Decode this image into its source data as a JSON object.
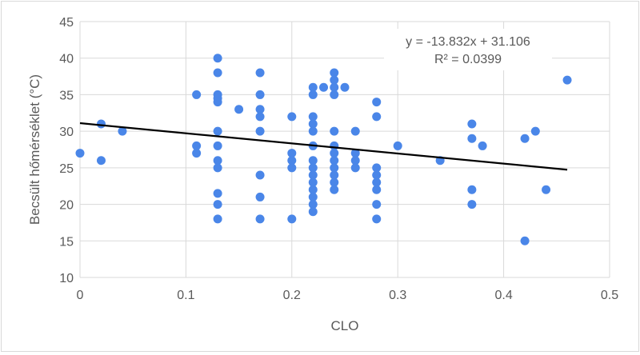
{
  "chart_data": {
    "type": "scatter",
    "title": "",
    "xlabel": "CLO",
    "ylabel": "Becsült hőmérséklet (°C)",
    "xlim": [
      0,
      0.5
    ],
    "ylim": [
      10,
      45
    ],
    "x_ticks": [
      "0",
      "0.1",
      "0.2",
      "0.3",
      "0.4",
      "0.5"
    ],
    "y_ticks": [
      "10",
      "15",
      "20",
      "25",
      "30",
      "35",
      "40",
      "45"
    ],
    "grid": true,
    "point_color": "#4a86e8",
    "trend_color": "#000000",
    "trendline": {
      "slope": -13.832,
      "intercept": 31.106,
      "x_range": [
        0,
        0.46
      ],
      "equation": "y = -13.832x + 31.106",
      "r_squared": "R² = 0.0399"
    },
    "series": [
      {
        "name": "Becsült hőmérséklet",
        "points": [
          [
            0,
            27
          ],
          [
            0.02,
            31
          ],
          [
            0.02,
            26
          ],
          [
            0.04,
            30
          ],
          [
            0.11,
            35
          ],
          [
            0.11,
            28
          ],
          [
            0.11,
            27
          ],
          [
            0.13,
            40
          ],
          [
            0.13,
            38
          ],
          [
            0.13,
            35
          ],
          [
            0.13,
            34.5
          ],
          [
            0.13,
            34
          ],
          [
            0.13,
            30
          ],
          [
            0.13,
            28
          ],
          [
            0.13,
            26
          ],
          [
            0.13,
            25
          ],
          [
            0.13,
            21.5
          ],
          [
            0.13,
            20
          ],
          [
            0.13,
            18
          ],
          [
            0.15,
            33
          ],
          [
            0.17,
            38
          ],
          [
            0.17,
            35
          ],
          [
            0.17,
            33
          ],
          [
            0.17,
            32
          ],
          [
            0.17,
            30
          ],
          [
            0.17,
            24
          ],
          [
            0.17,
            21
          ],
          [
            0.17,
            18
          ],
          [
            0.2,
            32
          ],
          [
            0.2,
            27
          ],
          [
            0.2,
            26
          ],
          [
            0.2,
            25
          ],
          [
            0.2,
            18
          ],
          [
            0.22,
            36
          ],
          [
            0.22,
            35
          ],
          [
            0.22,
            32
          ],
          [
            0.22,
            31
          ],
          [
            0.22,
            30
          ],
          [
            0.22,
            28
          ],
          [
            0.22,
            26
          ],
          [
            0.22,
            25
          ],
          [
            0.22,
            24
          ],
          [
            0.22,
            23
          ],
          [
            0.22,
            22
          ],
          [
            0.22,
            21
          ],
          [
            0.22,
            20
          ],
          [
            0.22,
            19
          ],
          [
            0.23,
            36
          ],
          [
            0.24,
            38
          ],
          [
            0.24,
            37
          ],
          [
            0.24,
            36
          ],
          [
            0.24,
            35
          ],
          [
            0.24,
            30
          ],
          [
            0.24,
            28
          ],
          [
            0.24,
            27
          ],
          [
            0.24,
            26
          ],
          [
            0.24,
            25
          ],
          [
            0.24,
            24
          ],
          [
            0.24,
            23
          ],
          [
            0.24,
            22
          ],
          [
            0.25,
            36
          ],
          [
            0.26,
            30
          ],
          [
            0.26,
            27
          ],
          [
            0.26,
            26
          ],
          [
            0.26,
            25
          ],
          [
            0.28,
            34
          ],
          [
            0.28,
            32
          ],
          [
            0.28,
            25
          ],
          [
            0.28,
            24
          ],
          [
            0.28,
            23
          ],
          [
            0.28,
            22
          ],
          [
            0.28,
            20
          ],
          [
            0.28,
            18
          ],
          [
            0.3,
            28
          ],
          [
            0.34,
            26
          ],
          [
            0.37,
            31
          ],
          [
            0.37,
            29
          ],
          [
            0.37,
            22
          ],
          [
            0.37,
            20
          ],
          [
            0.38,
            28
          ],
          [
            0.42,
            29
          ],
          [
            0.42,
            15
          ],
          [
            0.43,
            30
          ],
          [
            0.44,
            22
          ],
          [
            0.46,
            37
          ]
        ]
      }
    ]
  }
}
